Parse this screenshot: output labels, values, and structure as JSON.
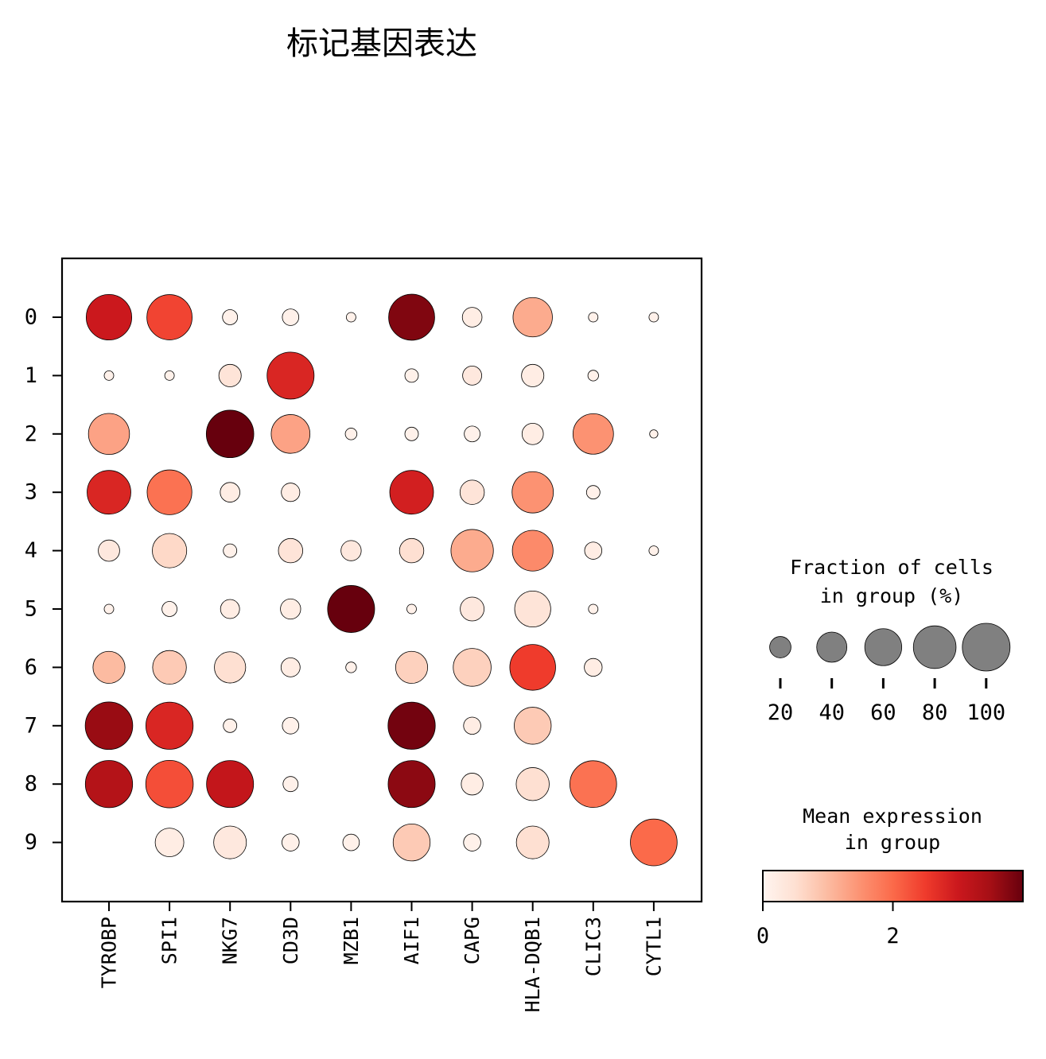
{
  "chart_data": {
    "type": "dotplot",
    "title": "标记基因表达",
    "genes": [
      "TYROBP",
      "SPI1",
      "NKG7",
      "CD3D",
      "MZB1",
      "AIF1",
      "CAPG",
      "HLA-DQB1",
      "CLIC3",
      "CYTL1"
    ],
    "groups": [
      "0",
      "1",
      "2",
      "3",
      "4",
      "5",
      "6",
      "7",
      "8",
      "9"
    ],
    "fraction_pct": [
      [
        91,
        90,
        10,
        12,
        4,
        93,
        17,
        68,
        4,
        4
      ],
      [
        4,
        4,
        22,
        97,
        null,
        8,
        16,
        22,
        5,
        null
      ],
      [
        74,
        null,
        99,
        66,
        6,
        8,
        11,
        20,
        72,
        3
      ],
      [
        84,
        88,
        17,
        15,
        null,
        84,
        26,
        75,
        8,
        null
      ],
      [
        20,
        52,
        8,
        26,
        18,
        26,
        79,
        73,
        13,
        4
      ],
      [
        4,
        10,
        16,
        18,
        97,
        4,
        25,
        57,
        4,
        null
      ],
      [
        45,
        50,
        43,
        16,
        5,
        45,
        63,
        92,
        14,
        null
      ],
      [
        99,
        98,
        8,
        12,
        null,
        98,
        13,
        60,
        null,
        null
      ],
      [
        98,
        99,
        97,
        10,
        null,
        97,
        21,
        48,
        96,
        null
      ],
      [
        null,
        36,
        47,
        13,
        12,
        60,
        13,
        47,
        null,
        96
      ]
    ],
    "mean_expression": [
      [
        3.0,
        2.4,
        0.1,
        0.1,
        0.1,
        3.8,
        0.2,
        1.2,
        0.1,
        0.1
      ],
      [
        0.1,
        0.1,
        0.4,
        2.8,
        null,
        0.1,
        0.3,
        0.2,
        0.1,
        null
      ],
      [
        1.3,
        null,
        4.0,
        1.3,
        0.1,
        0.1,
        0.1,
        0.2,
        1.5,
        0.1
      ],
      [
        2.8,
        1.9,
        0.2,
        0.2,
        null,
        2.9,
        0.4,
        1.5,
        0.1,
        null
      ],
      [
        0.3,
        0.6,
        0.1,
        0.4,
        0.3,
        0.5,
        1.2,
        1.6,
        0.2,
        0.1
      ],
      [
        0.1,
        0.1,
        0.2,
        0.2,
        4.0,
        0.1,
        0.3,
        0.4,
        0.1,
        null
      ],
      [
        1.0,
        0.8,
        0.5,
        0.2,
        0.1,
        0.7,
        0.7,
        2.5,
        0.2,
        null
      ],
      [
        3.6,
        2.8,
        0.1,
        0.1,
        null,
        3.9,
        0.2,
        0.8,
        null,
        null
      ],
      [
        3.3,
        2.3,
        3.1,
        0.1,
        null,
        3.7,
        0.2,
        0.5,
        1.9,
        null
      ],
      [
        null,
        0.2,
        0.3,
        0.1,
        0.1,
        0.8,
        0.1,
        0.5,
        null,
        2.0
      ]
    ],
    "size_legend": {
      "title_lines": [
        "Fraction of cells",
        "in group (%)"
      ],
      "values": [
        20,
        40,
        60,
        80,
        100
      ]
    },
    "color_legend": {
      "title_lines": [
        "Mean expression",
        "in group"
      ],
      "ticks": [
        0,
        2
      ],
      "range": [
        0,
        4
      ],
      "colormap": [
        "#fff5f0",
        "#fee0d2",
        "#fcbba1",
        "#fc9272",
        "#fb6a4a",
        "#ef3b2c",
        "#cb181d",
        "#a50f15",
        "#67000d"
      ]
    },
    "legend_dot_color": "#808080",
    "dot_edge_color": "#000000"
  }
}
